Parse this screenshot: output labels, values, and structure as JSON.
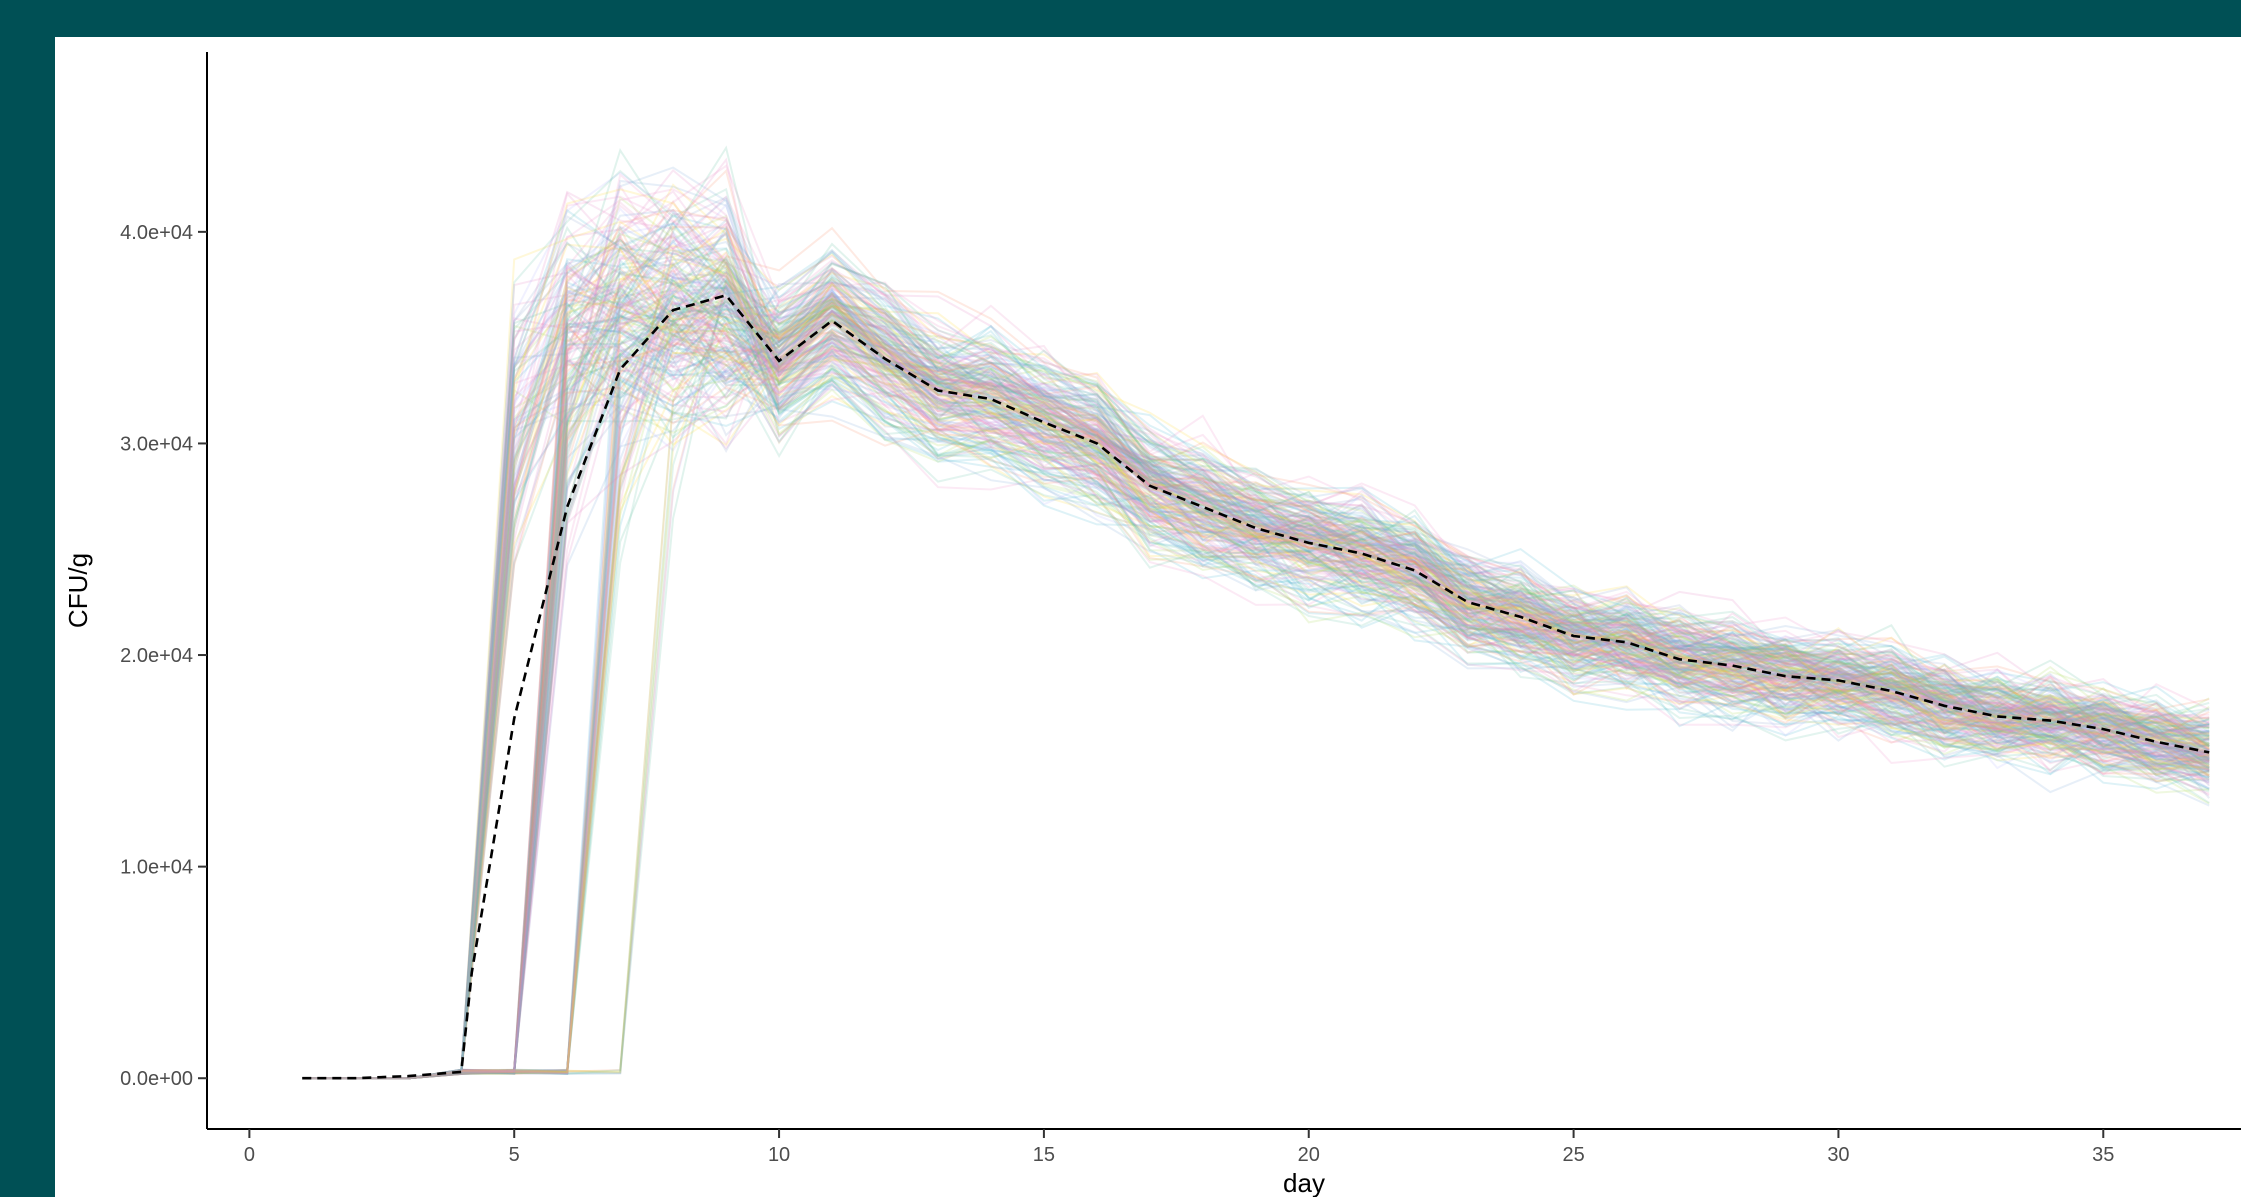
{
  "chart_data": {
    "type": "line",
    "title": "",
    "xlabel": "day",
    "ylabel": "CFU/g",
    "xlim": [
      -0.8,
      37.6
    ],
    "ylim": [
      -2400,
      48500
    ],
    "grid": false,
    "legend": "none",
    "x_ticks": [
      0,
      5,
      10,
      15,
      20,
      25,
      30,
      35
    ],
    "x_tick_labels": [
      "0",
      "5",
      "10",
      "15",
      "20",
      "25",
      "30",
      "35"
    ],
    "y_ticks": [
      0,
      10000,
      20000,
      30000,
      40000
    ],
    "y_tick_labels": [
      "0.0e+00",
      "1.0e+04",
      "2.0e+04",
      "3.0e+04",
      "4.0e+04"
    ],
    "mean_series": {
      "style": "dashed",
      "color": "#000000",
      "x": [
        1,
        2,
        3,
        4,
        4.2,
        5,
        6,
        7,
        8,
        9,
        10,
        11,
        12,
        13,
        14,
        15,
        16,
        17,
        18,
        19,
        20,
        21,
        22,
        23,
        24,
        25,
        26,
        27,
        28,
        29,
        30,
        31,
        32,
        33,
        34,
        35,
        36,
        37
      ],
      "values": [
        0,
        0,
        100,
        300,
        5000,
        17000,
        27000,
        33500,
        36300,
        37000,
        33900,
        35800,
        34000,
        32500,
        32100,
        31000,
        30000,
        28000,
        27000,
        26000,
        25300,
        24800,
        24000,
        22500,
        21800,
        20900,
        20600,
        19800,
        19500,
        19000,
        18800,
        18300,
        17600,
        17100,
        16900,
        16500,
        15900,
        15400
      ]
    },
    "ensemble": {
      "count": 240,
      "opacity": 0.18,
      "colors": [
        "#e67ec4",
        "#66c2a5",
        "#8da0cb",
        "#a6d854",
        "#4ab5d3",
        "#fc8d62",
        "#e78ac3",
        "#5bbf9b",
        "#7aa6d6",
        "#ffd92f",
        "#f08cc8",
        "#b3b3ff"
      ]
    }
  }
}
